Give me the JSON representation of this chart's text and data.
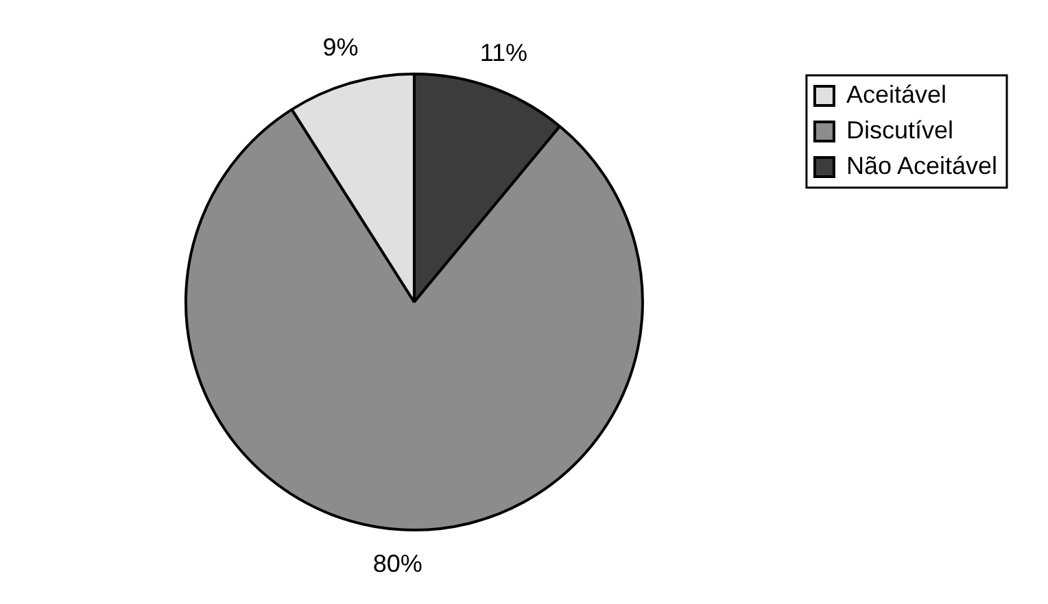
{
  "chart_data": {
    "type": "pie",
    "categories": [
      "Aceitável",
      "Discutível",
      "Não Aceitável"
    ],
    "values": [
      9,
      80,
      11
    ],
    "colors": [
      "#e0e0e0",
      "#8c8c8c",
      "#3c3c3c"
    ],
    "value_labels": [
      "9%",
      "80%",
      "11%"
    ],
    "legend": "top right"
  }
}
